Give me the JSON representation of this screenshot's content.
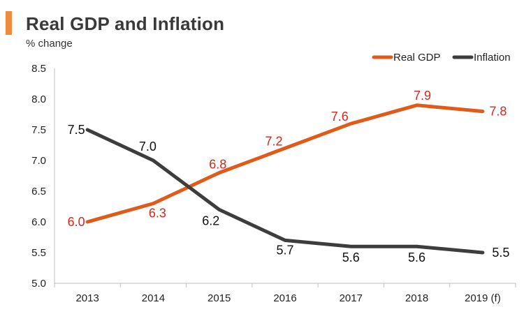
{
  "chart_data": {
    "type": "line",
    "title": "Real GDP and Inflation",
    "subtitle": "% change",
    "categories": [
      "2013",
      "2014",
      "2015",
      "2016",
      "2017",
      "2018",
      "2019 (f)"
    ],
    "yticks": [
      "5.0",
      "5.5",
      "6.0",
      "6.5",
      "7.0",
      "7.5",
      "8.0",
      "8.5"
    ],
    "ylim": [
      5.0,
      8.5
    ],
    "series": [
      {
        "name": "Real GDP",
        "color": "#e05a1a",
        "label_color": "#d9261c",
        "values": [
          6.0,
          6.3,
          6.8,
          7.2,
          7.6,
          7.9,
          7.8
        ],
        "labels": [
          "6.0",
          "6.3",
          "6.8",
          "7.2",
          "7.6",
          "7.9",
          "7.8"
        ]
      },
      {
        "name": "Inflation",
        "color": "#3d3d3d",
        "label_color": "#111111",
        "values": [
          7.5,
          7.0,
          6.2,
          5.7,
          5.6,
          5.6,
          5.5
        ],
        "labels": [
          "7.5",
          "7.0",
          "6.2",
          "5.7",
          "5.6",
          "5.6",
          "5.5"
        ]
      }
    ],
    "legend_position": "top-right"
  }
}
